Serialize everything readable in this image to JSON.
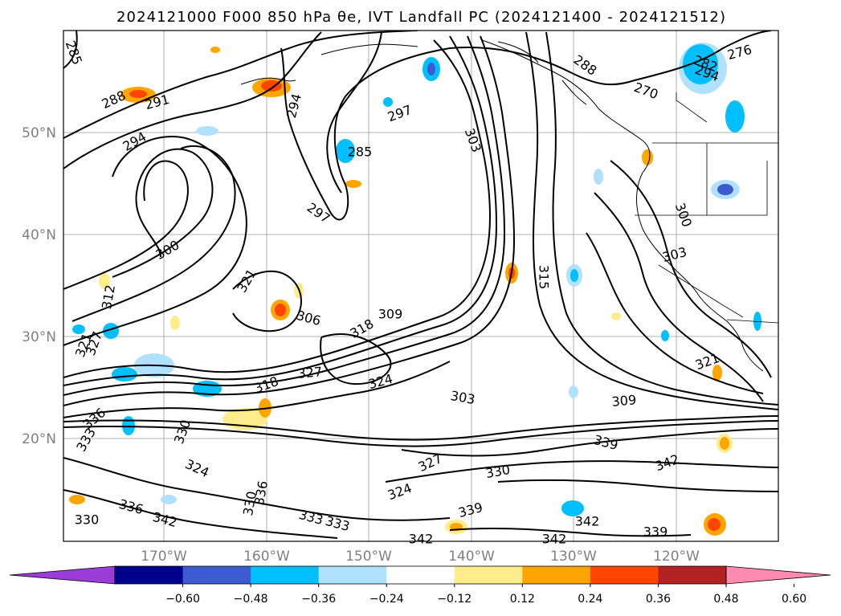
{
  "title": "2024121000 F000 850 hPa θe, IVT Landfall PC (2024121400 - 2024121512)",
  "lat_labels": [
    "50°N",
    "40°N",
    "30°N",
    "20°N"
  ],
  "lon_labels": [
    "170°W",
    "160°W",
    "150°W",
    "140°W",
    "130°W",
    "120°W"
  ],
  "colorbar": {
    "ticks": [
      "−0.60",
      "−0.48",
      "−0.36",
      "−0.24",
      "−0.12",
      "0.12",
      "0.24",
      "0.36",
      "0.48",
      "0.60"
    ],
    "colors": [
      "#9a3cd6",
      "#00008b",
      "#3c5bd0",
      "#00bfff",
      "#b0e2ff",
      "#ffffff",
      "#ffec8b",
      "#ffa500",
      "#ff4500",
      "#b22222",
      "#ff8cb0"
    ],
    "extend": "both"
  },
  "contour_labels": [
    {
      "text": "285"
    },
    {
      "text": "288"
    },
    {
      "text": "291"
    },
    {
      "text": "294"
    },
    {
      "text": "294"
    },
    {
      "text": "297"
    },
    {
      "text": "297"
    },
    {
      "text": "303"
    },
    {
      "text": "285"
    },
    {
      "text": "288"
    },
    {
      "text": "270"
    },
    {
      "text": "276"
    },
    {
      "text": "282"
    },
    {
      "text": "294"
    },
    {
      "text": "300"
    },
    {
      "text": "303"
    },
    {
      "text": "315"
    },
    {
      "text": "321"
    },
    {
      "text": "300"
    },
    {
      "text": "306"
    },
    {
      "text": "309"
    },
    {
      "text": "318"
    },
    {
      "text": "327"
    },
    {
      "text": "324"
    },
    {
      "text": "318"
    },
    {
      "text": "303"
    },
    {
      "text": "309"
    },
    {
      "text": "321"
    },
    {
      "text": "339"
    },
    {
      "text": "342"
    },
    {
      "text": "330"
    },
    {
      "text": "327"
    },
    {
      "text": "324"
    },
    {
      "text": "339"
    },
    {
      "text": "342"
    },
    {
      "text": "342"
    },
    {
      "text": "342"
    },
    {
      "text": "339"
    },
    {
      "text": "324"
    },
    {
      "text": "330"
    },
    {
      "text": "336"
    },
    {
      "text": "333"
    },
    {
      "text": "333"
    },
    {
      "text": "336"
    },
    {
      "text": "342"
    },
    {
      "text": "330"
    },
    {
      "text": "336"
    },
    {
      "text": "333"
    },
    {
      "text": "321"
    },
    {
      "text": "327"
    },
    {
      "text": "330"
    },
    {
      "text": "312"
    }
  ]
}
